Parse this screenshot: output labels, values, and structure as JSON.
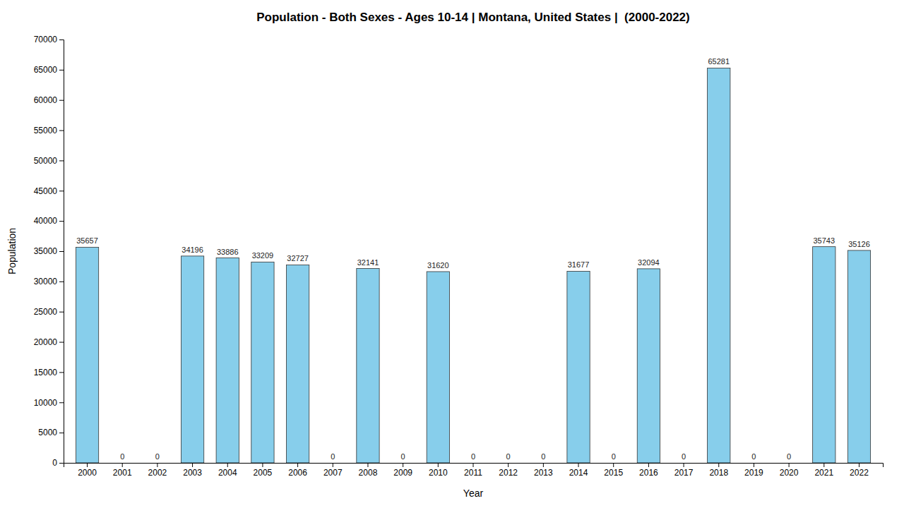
{
  "chart_data": {
    "type": "bar",
    "title": "Population - Both Sexes - Ages 10-14 | Montana, United States |  (2000-2022)",
    "x_label": "Year",
    "y_label": "Population",
    "categories": [
      "2000",
      "2001",
      "2002",
      "2003",
      "2004",
      "2005",
      "2006",
      "2007",
      "2008",
      "2009",
      "2010",
      "2011",
      "2012",
      "2013",
      "2014",
      "2015",
      "2016",
      "2017",
      "2018",
      "2019",
      "2020",
      "2021",
      "2022"
    ],
    "values": [
      35657,
      0,
      0,
      34196,
      33886,
      33209,
      32727,
      0,
      32141,
      0,
      31620,
      0,
      0,
      0,
      31677,
      0,
      32094,
      0,
      65281,
      0,
      0,
      35743,
      35126
    ],
    "color": "#87CEEB",
    "ylim": [
      0,
      70000
    ],
    "yticks": [
      0,
      5000,
      10000,
      15000,
      20000,
      25000,
      30000,
      35000,
      40000,
      45000,
      50000,
      55000,
      60000,
      65000,
      70000
    ],
    "grid": false,
    "data_labels": true
  }
}
